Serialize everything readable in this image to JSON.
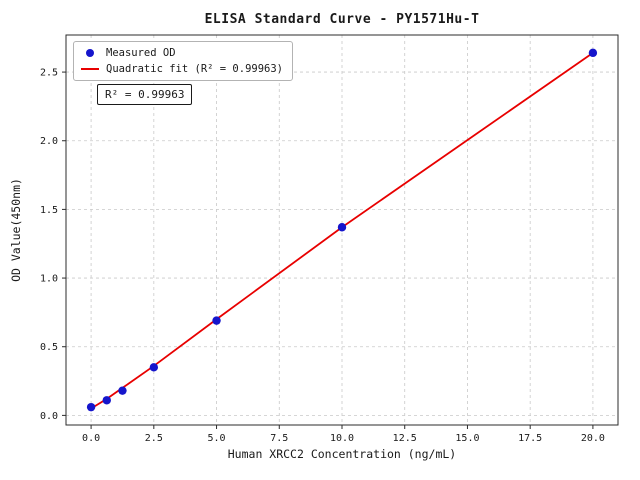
{
  "chart_data": {
    "type": "scatter",
    "title": "ELISA Standard Curve - PY1571Hu-T",
    "xlabel": "Human XRCC2 Concentration (ng/mL)",
    "ylabel": "OD Value(450nm)",
    "xlim": [
      -1.0,
      21.0
    ],
    "ylim": [
      -0.07,
      2.77
    ],
    "xticks": [
      0.0,
      2.5,
      5.0,
      7.5,
      10.0,
      12.5,
      15.0,
      17.5,
      20.0
    ],
    "yticks": [
      0.0,
      0.5,
      1.0,
      1.5,
      2.0,
      2.5
    ],
    "grid": true,
    "annotation": "R² = 0.99963",
    "legend": {
      "position": "upper-left",
      "entries": [
        {
          "label": "Measured OD",
          "marker": "dot",
          "color": "#1515cc"
        },
        {
          "label": "Quadratic fit (R² = 0.99963)",
          "marker": "line",
          "color": "#e80000"
        }
      ]
    },
    "series": [
      {
        "name": "Measured OD",
        "type": "scatter",
        "color": "#1515cc",
        "x": [
          0,
          0.625,
          1.25,
          2.5,
          5,
          10,
          20
        ],
        "y": [
          0.06,
          0.11,
          0.18,
          0.35,
          0.69,
          1.37,
          2.64
        ]
      },
      {
        "name": "Quadratic fit",
        "type": "line",
        "color": "#e80000",
        "x": [
          0,
          0.625,
          1.25,
          2.5,
          5,
          10,
          20
        ],
        "y": [
          0.05,
          0.12,
          0.2,
          0.36,
          0.7,
          1.37,
          2.64
        ]
      }
    ]
  }
}
